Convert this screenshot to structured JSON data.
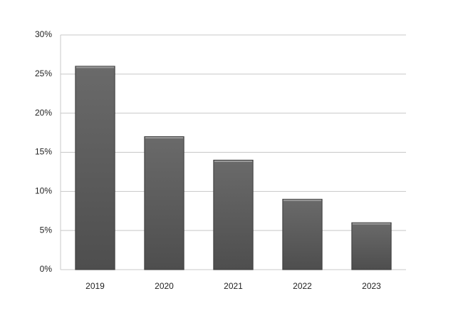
{
  "chart_data": {
    "type": "bar",
    "categories": [
      "2019",
      "2020",
      "2021",
      "2022",
      "2023"
    ],
    "values": [
      26,
      17,
      14,
      9,
      6
    ],
    "color": "#5a5a5a",
    "ylim": [
      0,
      30
    ],
    "yticks": [
      {
        "value": 0,
        "label": "0%"
      },
      {
        "value": 5,
        "label": "5%"
      },
      {
        "value": 10,
        "label": "10%"
      },
      {
        "value": 15,
        "label": "15%"
      },
      {
        "value": 20,
        "label": "20%"
      },
      {
        "value": 25,
        "label": "25%"
      },
      {
        "value": 30,
        "label": "30%"
      }
    ],
    "grid": true
  }
}
